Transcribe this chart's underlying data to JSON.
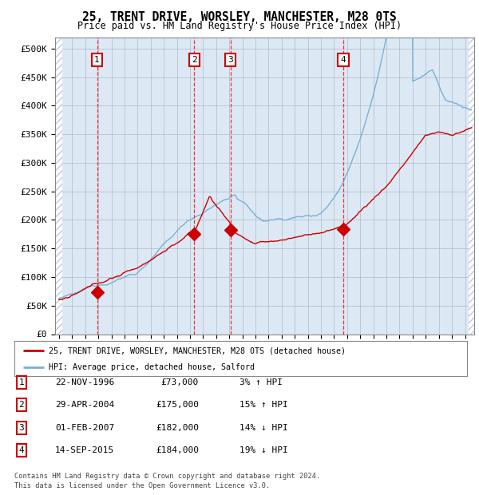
{
  "title": "25, TRENT DRIVE, WORSLEY, MANCHESTER, M28 0TS",
  "subtitle": "Price paid vs. HM Land Registry's House Price Index (HPI)",
  "footer1": "Contains HM Land Registry data © Crown copyright and database right 2024.",
  "footer2": "This data is licensed under the Open Government Licence v3.0.",
  "legend_red": "25, TRENT DRIVE, WORSLEY, MANCHESTER, M28 0TS (detached house)",
  "legend_blue": "HPI: Average price, detached house, Salford",
  "transactions": [
    {
      "num": 1,
      "date": "22-NOV-1996",
      "price": 73000,
      "year": 1996.9,
      "pct": "3%",
      "dir": "↑"
    },
    {
      "num": 2,
      "date": "29-APR-2004",
      "price": 175000,
      "year": 2004.33,
      "pct": "15%",
      "dir": "↑"
    },
    {
      "num": 3,
      "date": "01-FEB-2007",
      "price": 182000,
      "year": 2007.08,
      "pct": "14%",
      "dir": "↓"
    },
    {
      "num": 4,
      "date": "14-SEP-2015",
      "price": 184000,
      "year": 2015.7,
      "pct": "19%",
      "dir": "↓"
    }
  ],
  "ylim": [
    0,
    520000
  ],
  "yticks": [
    0,
    50000,
    100000,
    150000,
    200000,
    250000,
    300000,
    350000,
    400000,
    450000,
    500000
  ],
  "ytick_labels": [
    "£0",
    "£50K",
    "£100K",
    "£150K",
    "£200K",
    "£250K",
    "£300K",
    "£350K",
    "£400K",
    "£450K",
    "£500K"
  ],
  "xlim_start": 1993.7,
  "xlim_end": 2025.7,
  "bg_color": "#dce9f5",
  "red_line_color": "#cc0000",
  "blue_line_color": "#7ab0d4",
  "grid_color": "#b0b8c8",
  "dashed_line_color": "#ee3333"
}
